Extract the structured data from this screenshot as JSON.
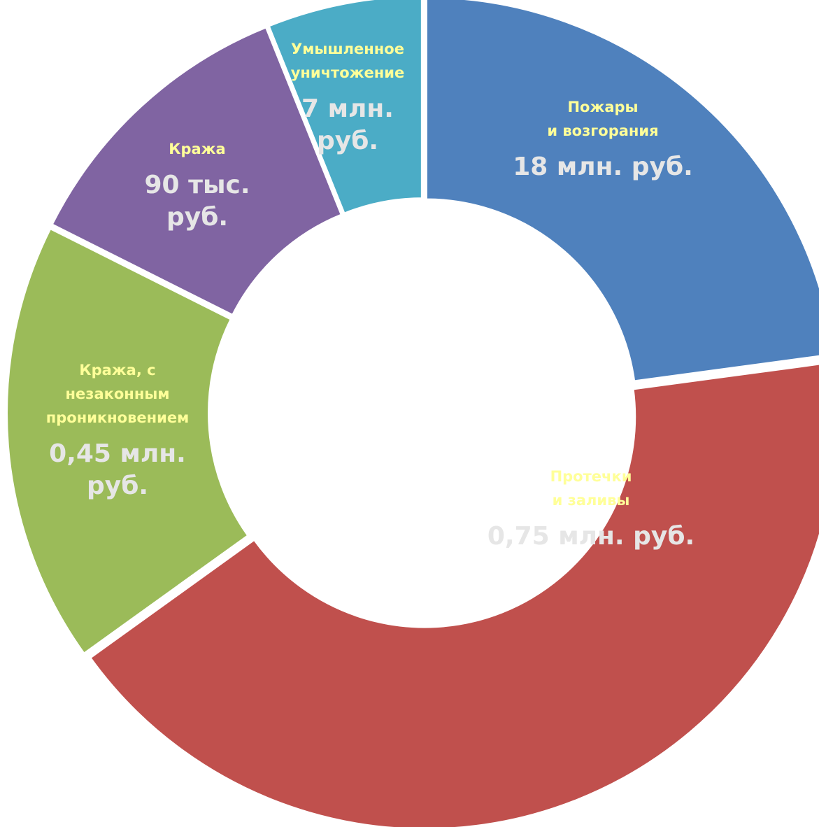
{
  "chart_data": {
    "type": "pie",
    "donut": true,
    "title": "",
    "slices": [
      {
        "name_lines": [
          "Пожары",
          "и возгорания"
        ],
        "value_lines": [
          "18 млн. руб."
        ],
        "share": 0.2287,
        "color": "#4f81bd"
      },
      {
        "name_lines": [
          "Протечки",
          "и заливы"
        ],
        "value_lines": [
          "0,75 млн. руб."
        ],
        "share": 0.4221,
        "color": "#c0504d"
      },
      {
        "name_lines": [
          "Кража, с",
          "незаконным",
          "проникновением"
        ],
        "value_lines": [
          "0,45 млн.",
          "руб."
        ],
        "share": 0.1732,
        "color": "#9bbb59"
      },
      {
        "name_lines": [
          "Кража"
        ],
        "value_lines": [
          "90 тыс.",
          "руб."
        ],
        "share": 0.1151,
        "color": "#8064a2"
      },
      {
        "name_lines": [
          "Умышленное",
          "уничтожение"
        ],
        "value_lines": [
          "7 млн.",
          "руб."
        ],
        "share": 0.0609,
        "color": "#4bacc6"
      }
    ],
    "label_color_name": "#ffff99",
    "label_color_value": "#e6e6e6",
    "legend": "none"
  }
}
